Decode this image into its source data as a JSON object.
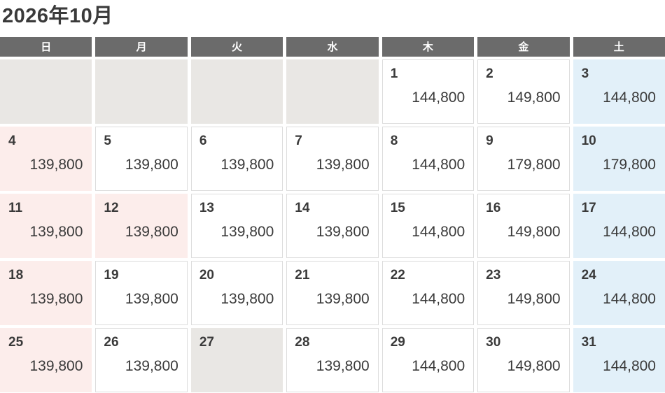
{
  "title": "2026年10月",
  "weekdays": [
    "日",
    "月",
    "火",
    "水",
    "木",
    "金",
    "土"
  ],
  "colors": {
    "header_bg": "#6b6b6b",
    "header_text": "#ffffff",
    "sunday_holiday_bg": "#fcedeb",
    "saturday_bg": "#e2f0f9",
    "unavailable_bg": "#e9e7e4",
    "cell_border": "#dddddd",
    "text": "#3a3a3a"
  },
  "weeks": [
    [
      {
        "variant": "gray"
      },
      {
        "variant": "gray"
      },
      {
        "variant": "gray"
      },
      {
        "variant": "gray"
      },
      {
        "day": "1",
        "price": "144,800",
        "variant": "white"
      },
      {
        "day": "2",
        "price": "149,800",
        "variant": "white"
      },
      {
        "day": "3",
        "price": "144,800",
        "variant": "blue"
      }
    ],
    [
      {
        "day": "4",
        "price": "139,800",
        "variant": "pink"
      },
      {
        "day": "5",
        "price": "139,800",
        "variant": "white"
      },
      {
        "day": "6",
        "price": "139,800",
        "variant": "white"
      },
      {
        "day": "7",
        "price": "139,800",
        "variant": "white"
      },
      {
        "day": "8",
        "price": "144,800",
        "variant": "white"
      },
      {
        "day": "9",
        "price": "179,800",
        "variant": "white"
      },
      {
        "day": "10",
        "price": "179,800",
        "variant": "blue"
      }
    ],
    [
      {
        "day": "11",
        "price": "139,800",
        "variant": "pink"
      },
      {
        "day": "12",
        "price": "139,800",
        "variant": "pink"
      },
      {
        "day": "13",
        "price": "139,800",
        "variant": "white"
      },
      {
        "day": "14",
        "price": "139,800",
        "variant": "white"
      },
      {
        "day": "15",
        "price": "144,800",
        "variant": "white"
      },
      {
        "day": "16",
        "price": "149,800",
        "variant": "white"
      },
      {
        "day": "17",
        "price": "144,800",
        "variant": "blue"
      }
    ],
    [
      {
        "day": "18",
        "price": "139,800",
        "variant": "pink"
      },
      {
        "day": "19",
        "price": "139,800",
        "variant": "white"
      },
      {
        "day": "20",
        "price": "139,800",
        "variant": "white"
      },
      {
        "day": "21",
        "price": "139,800",
        "variant": "white"
      },
      {
        "day": "22",
        "price": "144,800",
        "variant": "white"
      },
      {
        "day": "23",
        "price": "149,800",
        "variant": "white"
      },
      {
        "day": "24",
        "price": "144,800",
        "variant": "blue"
      }
    ],
    [
      {
        "day": "25",
        "price": "139,800",
        "variant": "pink"
      },
      {
        "day": "26",
        "price": "139,800",
        "variant": "white"
      },
      {
        "day": "27",
        "variant": "gray"
      },
      {
        "day": "28",
        "price": "139,800",
        "variant": "white"
      },
      {
        "day": "29",
        "price": "144,800",
        "variant": "white"
      },
      {
        "day": "30",
        "price": "149,800",
        "variant": "white"
      },
      {
        "day": "31",
        "price": "144,800",
        "variant": "blue"
      }
    ]
  ]
}
